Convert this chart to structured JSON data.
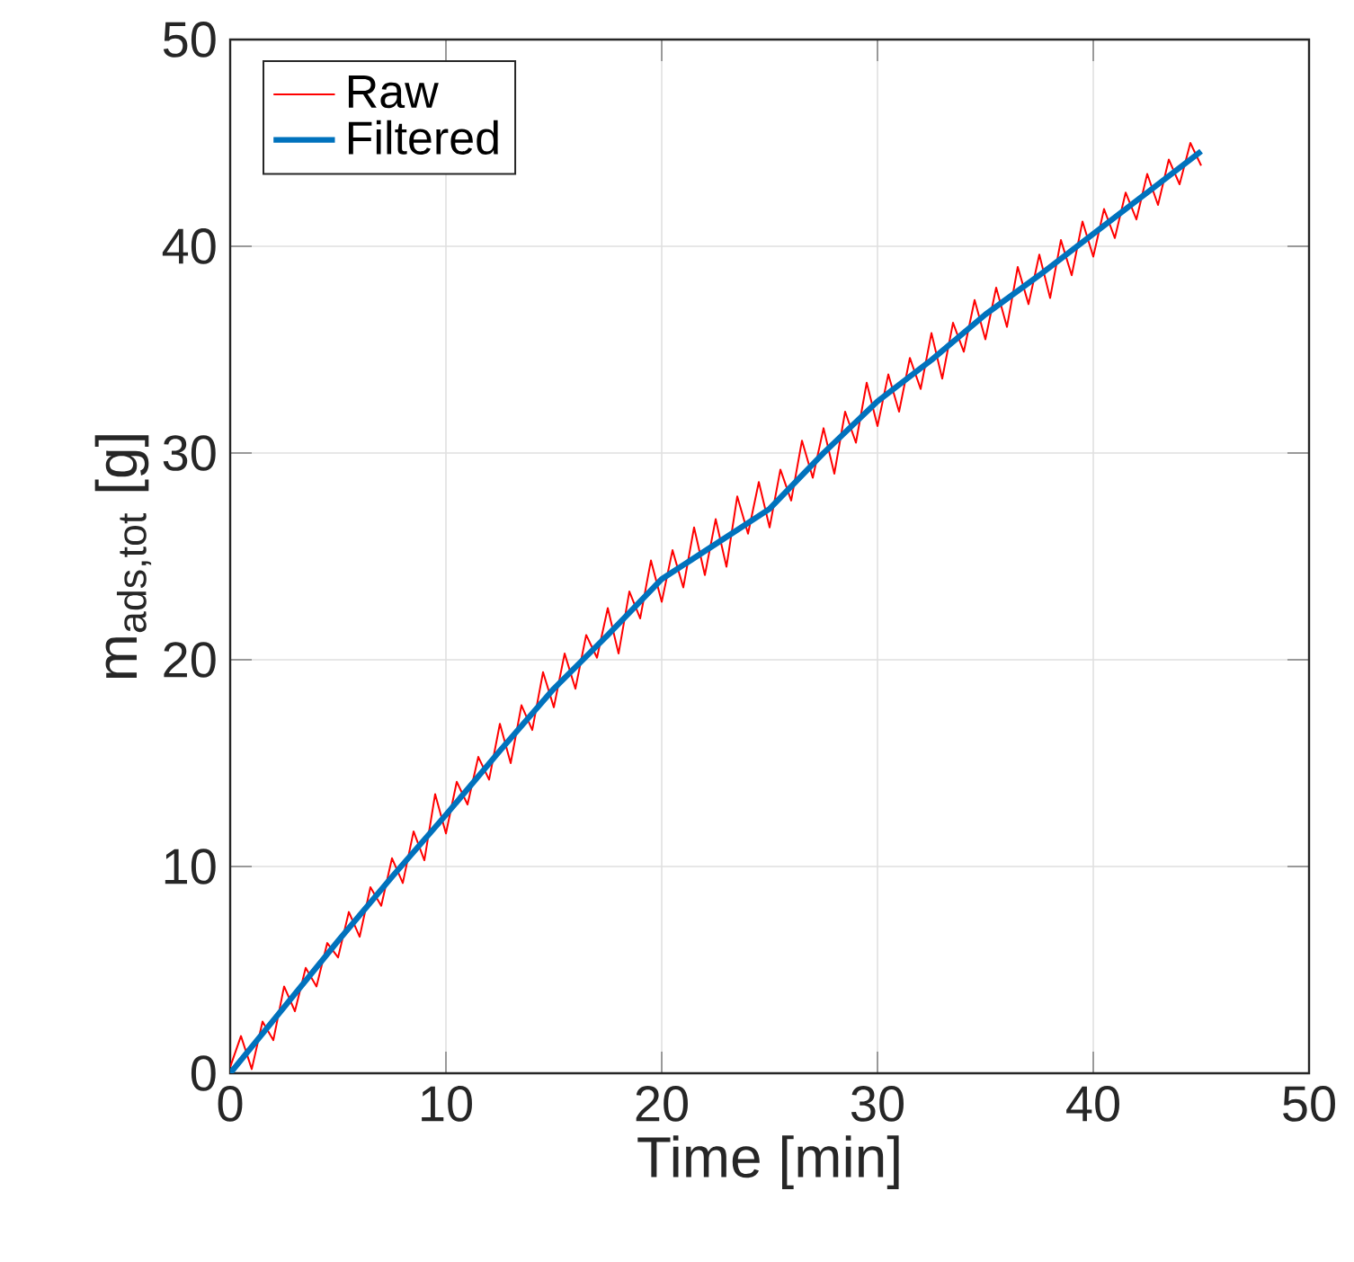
{
  "chart_data": {
    "type": "line",
    "xlabel": "Time [min]",
    "ylabel": "m$_{ads,tot}$ [g]",
    "xlim": [
      0,
      50
    ],
    "ylim": [
      0,
      50
    ],
    "xticks": [
      0,
      10,
      20,
      30,
      40,
      50
    ],
    "yticks": [
      0,
      10,
      20,
      30,
      40,
      50
    ],
    "grid": true,
    "legend": "top left",
    "series": [
      {
        "name": "Raw",
        "color": "#ff0000",
        "x": [
          0,
          0.5,
          1,
          1.5,
          2,
          2.5,
          3,
          3.5,
          4,
          4.5,
          5,
          5.5,
          6,
          6.5,
          7,
          7.5,
          8,
          8.5,
          9,
          9.5,
          10,
          10.5,
          11,
          11.5,
          12,
          12.5,
          13,
          13.5,
          14,
          14.5,
          15,
          15.5,
          16,
          16.5,
          17,
          17.5,
          18,
          18.5,
          19,
          19.5,
          20,
          20.5,
          21,
          21.5,
          22,
          22.5,
          23,
          23.5,
          24,
          24.5,
          25,
          25.5,
          26,
          26.5,
          27,
          27.5,
          28,
          28.5,
          29,
          29.5,
          30,
          30.5,
          31,
          31.5,
          32,
          32.5,
          33,
          33.5,
          34,
          34.5,
          35,
          35.5,
          36,
          36.5,
          37,
          37.5,
          38,
          38.5,
          39,
          39.5,
          40,
          40.5,
          41,
          41.5,
          42,
          42.5,
          43,
          43.5,
          44,
          44.5,
          45
        ],
        "values": [
          0.3,
          1.8,
          0.2,
          2.5,
          1.6,
          4.2,
          3.0,
          5.1,
          4.2,
          6.3,
          5.6,
          7.8,
          6.6,
          9.0,
          8.1,
          10.4,
          9.2,
          11.7,
          10.3,
          13.5,
          11.6,
          14.1,
          13.0,
          15.3,
          14.2,
          16.9,
          15.0,
          17.8,
          16.6,
          19.4,
          17.7,
          20.3,
          18.6,
          21.2,
          20.1,
          22.5,
          20.3,
          23.3,
          22.0,
          24.8,
          22.8,
          25.3,
          23.5,
          26.4,
          24.1,
          26.8,
          24.5,
          27.9,
          26.1,
          28.6,
          26.4,
          29.2,
          27.7,
          30.6,
          28.8,
          31.2,
          29.0,
          32.0,
          30.5,
          33.4,
          31.3,
          33.8,
          32.0,
          34.6,
          33.1,
          35.8,
          33.6,
          36.3,
          34.9,
          37.4,
          35.5,
          38.0,
          36.1,
          39.0,
          37.2,
          39.6,
          37.5,
          40.3,
          38.6,
          41.2,
          39.5,
          41.8,
          40.4,
          42.6,
          41.3,
          43.5,
          42.0,
          44.2,
          43.0,
          45.0,
          43.9
        ]
      },
      {
        "name": "Filtered",
        "color": "#0072bd",
        "x": [
          0,
          2.5,
          5,
          7.5,
          10,
          12.5,
          15,
          17.5,
          20,
          22.5,
          25,
          27.5,
          30,
          32.5,
          35,
          37.5,
          40,
          42.5,
          45
        ],
        "values": [
          0,
          3.2,
          6.4,
          9.5,
          12.5,
          15.6,
          18.6,
          21.2,
          23.9,
          25.6,
          27.3,
          30,
          32.5,
          34.5,
          36.7,
          38.6,
          40.6,
          42.6,
          44.6
        ]
      }
    ]
  }
}
